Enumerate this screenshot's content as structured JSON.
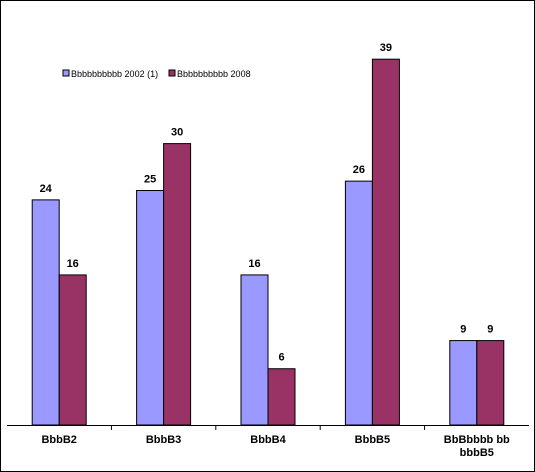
{
  "chart_data": {
    "type": "bar",
    "categories": [
      "BbbB2",
      "BbbB3",
      "BbbB4",
      "BbbB5",
      "BbBbbbb bb bbbB5"
    ],
    "category_lines": [
      [
        "BbbB2"
      ],
      [
        "BbbB3"
      ],
      [
        "BbbB4"
      ],
      [
        "BbbB5"
      ],
      [
        "BbBbbbb bb",
        "bbbB5"
      ]
    ],
    "series": [
      {
        "name": "Bbbbbbbbbb 2002 (1)",
        "values": [
          24,
          25,
          16,
          26,
          9
        ],
        "color": "#9999ff"
      },
      {
        "name": "Bbbbbbbbbb 2008",
        "values": [
          16,
          30,
          6,
          39,
          9
        ],
        "color": "#993366"
      }
    ],
    "ylim": [
      0,
      40
    ],
    "grid": false,
    "legend_position": "top-left",
    "data_labels": true
  }
}
